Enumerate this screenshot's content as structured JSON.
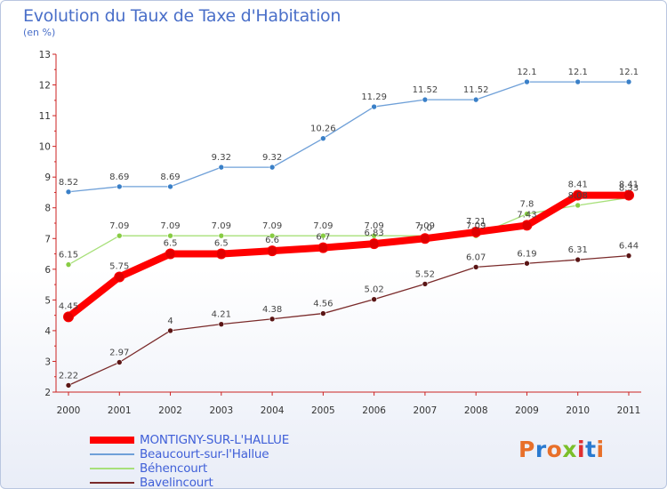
{
  "header": {
    "title": "Evolution du Taux de Taxe d'Habitation",
    "unit": "(en %)"
  },
  "logo": {
    "text": "Proxiti"
  },
  "chart_data": {
    "type": "line",
    "x": [
      "2000",
      "2001",
      "2002",
      "2003",
      "2004",
      "2005",
      "2006",
      "2007",
      "2008",
      "2009",
      "2010",
      "2011"
    ],
    "ylim": [
      2,
      13
    ],
    "yticks": [
      2,
      3,
      4,
      5,
      6,
      7,
      8,
      9,
      10,
      11,
      12,
      13
    ],
    "legend_position": "bottom-left",
    "grid": false,
    "series": [
      {
        "name": "MONTIGNY-SUR-L'HALLUE",
        "color": "#ff0000",
        "width": 8,
        "marker_color": "#e00000",
        "values": [
          4.45,
          5.75,
          6.5,
          6.5,
          6.6,
          6.7,
          6.83,
          7.0,
          7.21,
          7.43,
          8.41,
          8.41
        ],
        "labels": [
          "4.45",
          "5.75",
          "6.5",
          "6.5",
          "6.6",
          "6.7",
          "6.83",
          "7.0",
          "7.21",
          "7.43",
          "8.41",
          "8.41"
        ]
      },
      {
        "name": "Beaucourt-sur-l'Hallue",
        "color": "#6fa0d8",
        "width": 1.3,
        "marker_color": "#3a80c8",
        "values": [
          8.52,
          8.69,
          8.69,
          9.32,
          9.32,
          10.26,
          11.29,
          11.52,
          11.52,
          12.1,
          12.1,
          12.1
        ],
        "labels": [
          "8.52",
          "8.69",
          "8.69",
          "9.32",
          "9.32",
          "10.26",
          "11.29",
          "11.52",
          "11.52",
          "12.1",
          "12.1",
          "12.1"
        ]
      },
      {
        "name": "Béhencourt",
        "color": "#a8e07a",
        "width": 1.3,
        "marker_color": "#88cc44",
        "values": [
          6.15,
          7.09,
          7.09,
          7.09,
          7.09,
          7.09,
          7.09,
          7.09,
          7.09,
          7.8,
          8.08,
          8.33
        ],
        "labels": [
          "6.15",
          "7.09",
          "7.09",
          "7.09",
          "7.09",
          "7.09",
          "7.09",
          "7.09",
          "7.09",
          "7.8",
          "8.08",
          "8.33"
        ]
      },
      {
        "name": "Bavelincourt",
        "color": "#7a2a2a",
        "width": 1.3,
        "marker_color": "#5a1515",
        "values": [
          2.22,
          2.97,
          4.0,
          4.21,
          4.38,
          4.56,
          5.02,
          5.52,
          6.07,
          6.19,
          6.31,
          6.44
        ],
        "labels": [
          "2.22",
          "2.97",
          "4",
          "4.21",
          "4.38",
          "4.56",
          "5.02",
          "5.52",
          "6.07",
          "6.19",
          "6.31",
          "6.44"
        ]
      }
    ]
  }
}
